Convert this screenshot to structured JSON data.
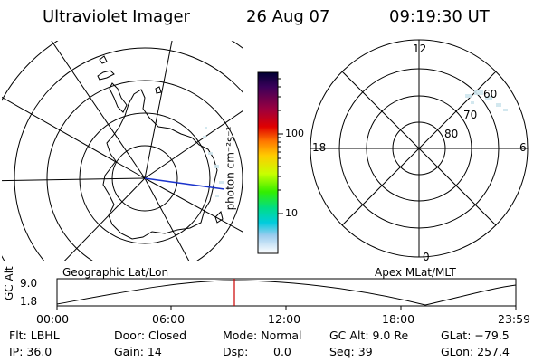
{
  "header": {
    "instrument": "Ultraviolet Imager",
    "date": "26 Aug 07",
    "time": "09:19:30 UT"
  },
  "colorbar": {
    "label": "photon cm⁻²s⁻¹",
    "ticks": [
      "100",
      "10"
    ],
    "colors": [
      "#000033",
      "#1a0050",
      "#5a0070",
      "#9a0040",
      "#cc0000",
      "#ff3300",
      "#ff9900",
      "#ffdd00",
      "#ccff00",
      "#55ee00",
      "#00dd66",
      "#00ccdd",
      "#66ccee",
      "#bbddee",
      "#ffffff"
    ]
  },
  "left_map": {
    "label": "Geographic Lat/Lon"
  },
  "right_map": {
    "label": "Apex MLat/MLT",
    "mlt_labels": [
      "12",
      "18",
      "6",
      "0"
    ],
    "mlat_labels": [
      "60",
      "70",
      "80"
    ]
  },
  "altitude_plot": {
    "ylabel": "GC Alt",
    "yticks": [
      "9.0",
      "1.8"
    ],
    "xticks": [
      "00:00",
      "06:00",
      "12:00",
      "18:00",
      "23:59"
    ],
    "current_time_marker": "09:19:30",
    "marker_color": "#cc0000"
  },
  "info": {
    "row1": {
      "filter": "Flt: LBHL",
      "door": "Door: Closed",
      "mode": "Mode: Normal",
      "gc_alt": "GC Alt: 9.0 Re",
      "glat": "GLat: −79.5"
    },
    "row2": {
      "ip": "IP: 36.0",
      "gain": "Gain: 14",
      "dsp_label": "Dsp:",
      "dsp_value": "0.0",
      "seq": "Seq: 39",
      "glon": "GLon: 257.4"
    }
  }
}
